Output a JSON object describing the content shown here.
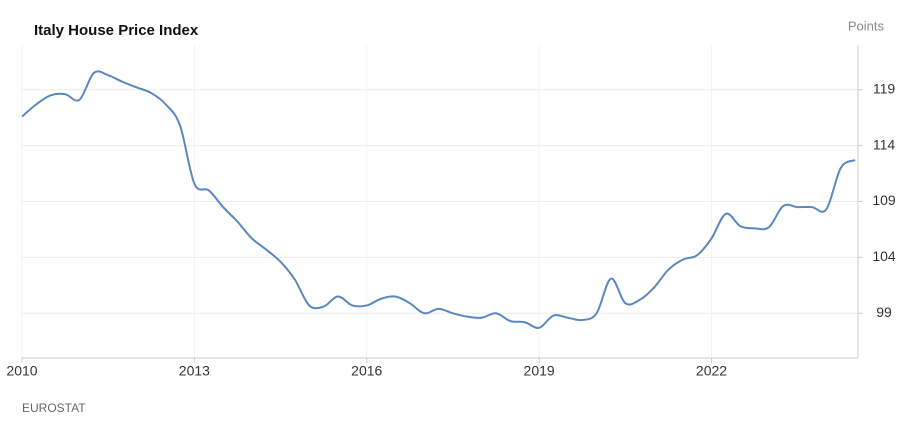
{
  "chart_data": {
    "type": "line",
    "title": "Italy House Price Index",
    "y_unit": "Points",
    "source": "EUROSTAT",
    "x": [
      2010,
      2010.25,
      2010.5,
      2010.75,
      2011,
      2011.25,
      2011.5,
      2011.75,
      2012,
      2012.25,
      2012.5,
      2012.75,
      2013,
      2013.25,
      2013.5,
      2013.75,
      2014,
      2014.25,
      2014.5,
      2014.75,
      2015,
      2015.25,
      2015.5,
      2015.75,
      2016,
      2016.25,
      2016.5,
      2016.75,
      2017,
      2017.25,
      2017.5,
      2017.75,
      2018,
      2018.25,
      2018.5,
      2018.75,
      2019,
      2019.25,
      2019.5,
      2019.75,
      2020,
      2020.25,
      2020.5,
      2020.75,
      2021,
      2021.25,
      2021.5,
      2021.75,
      2022,
      2022.25,
      2022.5,
      2022.75,
      2023,
      2023.25,
      2023.5,
      2023.75,
      2024,
      2024.25,
      2024.5
    ],
    "series": [
      {
        "color": "#5b87c0",
        "values": [
          116.6,
          117.7,
          118.5,
          118.6,
          118.1,
          120.5,
          120.3,
          119.7,
          119.2,
          118.7,
          117.7,
          115.8,
          110.6,
          110.0,
          108.5,
          107.2,
          105.7,
          104.7,
          103.6,
          102.0,
          99.7,
          99.6,
          100.5,
          99.7,
          99.7,
          100.3,
          100.5,
          99.9,
          99.0,
          99.4,
          99.0,
          98.7,
          98.6,
          99.0,
          98.3,
          98.2,
          97.7,
          98.8,
          98.6,
          98.4,
          99.0,
          102.1,
          99.9,
          100.2,
          101.3,
          102.9,
          103.8,
          104.2,
          105.7,
          107.9,
          106.8,
          106.6,
          106.7,
          108.6,
          108.5,
          108.5,
          108.3,
          112.0,
          112.7
        ]
      }
    ],
    "xlim": [
      2010,
      2024.55
    ],
    "xticks": [
      2010,
      2013,
      2016,
      2019,
      2022
    ],
    "ylim": [
      95,
      123
    ],
    "yticks": [
      99,
      104,
      109,
      114,
      119
    ],
    "grid": true
  }
}
